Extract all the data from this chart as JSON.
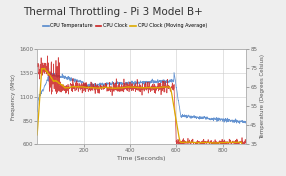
{
  "title": "Thermal Throttling - Pi 3 Model B+",
  "xlabel": "Time (Seconds)",
  "ylabel_left": "Frequency (MHz)",
  "ylabel_right": "Temperature (Degrees Celsius)",
  "xlim": [
    0,
    900
  ],
  "ylim_left": [
    600,
    1600
  ],
  "ylim_right": [
    35,
    85
  ],
  "yticks_left": [
    600,
    850,
    1100,
    1350,
    1600
  ],
  "yticks_right": [
    35,
    45,
    55,
    65,
    75,
    85
  ],
  "xticks": [
    200,
    400,
    600,
    800
  ],
  "bg_color": "#eeeeee",
  "plot_bg_color": "#ffffff",
  "grid_color": "#cccccc",
  "cpu_temp_color": "#5588cc",
  "cpu_clock_color": "#cc2222",
  "cpu_clock_ma_color": "#ddaa00",
  "legend_labels": [
    "CPU Temperature",
    "CPU Clock",
    "CPU Clock (Moving Average)"
  ]
}
